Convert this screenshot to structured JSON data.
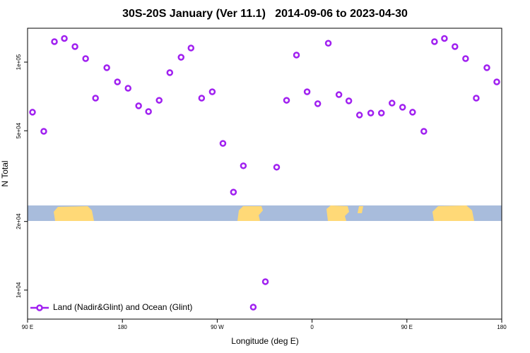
{
  "chart_data": {
    "type": "scatter",
    "title": "30S-20S January (Ver 11.1)   2014-09-06 to 2023-04-30",
    "x_label": "Longitude (deg E)",
    "y_label": "N Total",
    "log_y": true,
    "xlim": [
      90,
      540
    ],
    "ylim": [
      7460,
      140800
    ],
    "xticks": [
      {
        "value": 90,
        "label": "90 E"
      },
      {
        "value": 180,
        "label": "180"
      },
      {
        "value": 270,
        "label": "90 W"
      },
      {
        "value": 360,
        "label": "0"
      },
      {
        "value": 450,
        "label": "90 E"
      },
      {
        "value": 540,
        "label": "180"
      }
    ],
    "yticks": [
      {
        "value": 10000,
        "label": "1e+04"
      },
      {
        "value": 20000,
        "label": "2e+04"
      },
      {
        "value": 50000,
        "label": "5e+04"
      },
      {
        "value": 100000,
        "label": "1e+05"
      }
    ],
    "legend_position": "lower left",
    "series": [
      {
        "name": "Land (Nadir&Glint) and Ocean (Glint)",
        "color": "#a020f0",
        "x": [
          94.7,
          105.4,
          115.5,
          124.9,
          135,
          145.1,
          154.5,
          165.2,
          175.3,
          185.4,
          195.4,
          204.8,
          214.9,
          225,
          235.7,
          245.1,
          255.2,
          265.3,
          275.4,
          285.4,
          294.8,
          304.2,
          315.7,
          326.4,
          335.8,
          345.2,
          355.3,
          365.4,
          375.4,
          385.5,
          394.9,
          405,
          415.7,
          425.8,
          435.9,
          445.9,
          455.4,
          466.1,
          476.2,
          485.6,
          495.6,
          505.7,
          515.8,
          525.9,
          535.3
        ],
        "values": [
          60300,
          49700,
          123000,
          127000,
          117000,
          103600,
          69500,
          94500,
          81900,
          76800,
          64300,
          60700,
          68000,
          89900,
          105000,
          115300,
          69500,
          74100,
          44000,
          26900,
          35100,
          8420,
          10890,
          34600,
          68000,
          107400,
          74100,
          65700,
          121000,
          72000,
          67600,
          58600,
          59800,
          59800,
          66100,
          63400,
          60300,
          49700,
          123000,
          127000,
          117000,
          103600,
          69500,
          94500,
          81900
        ]
      }
    ]
  }
}
